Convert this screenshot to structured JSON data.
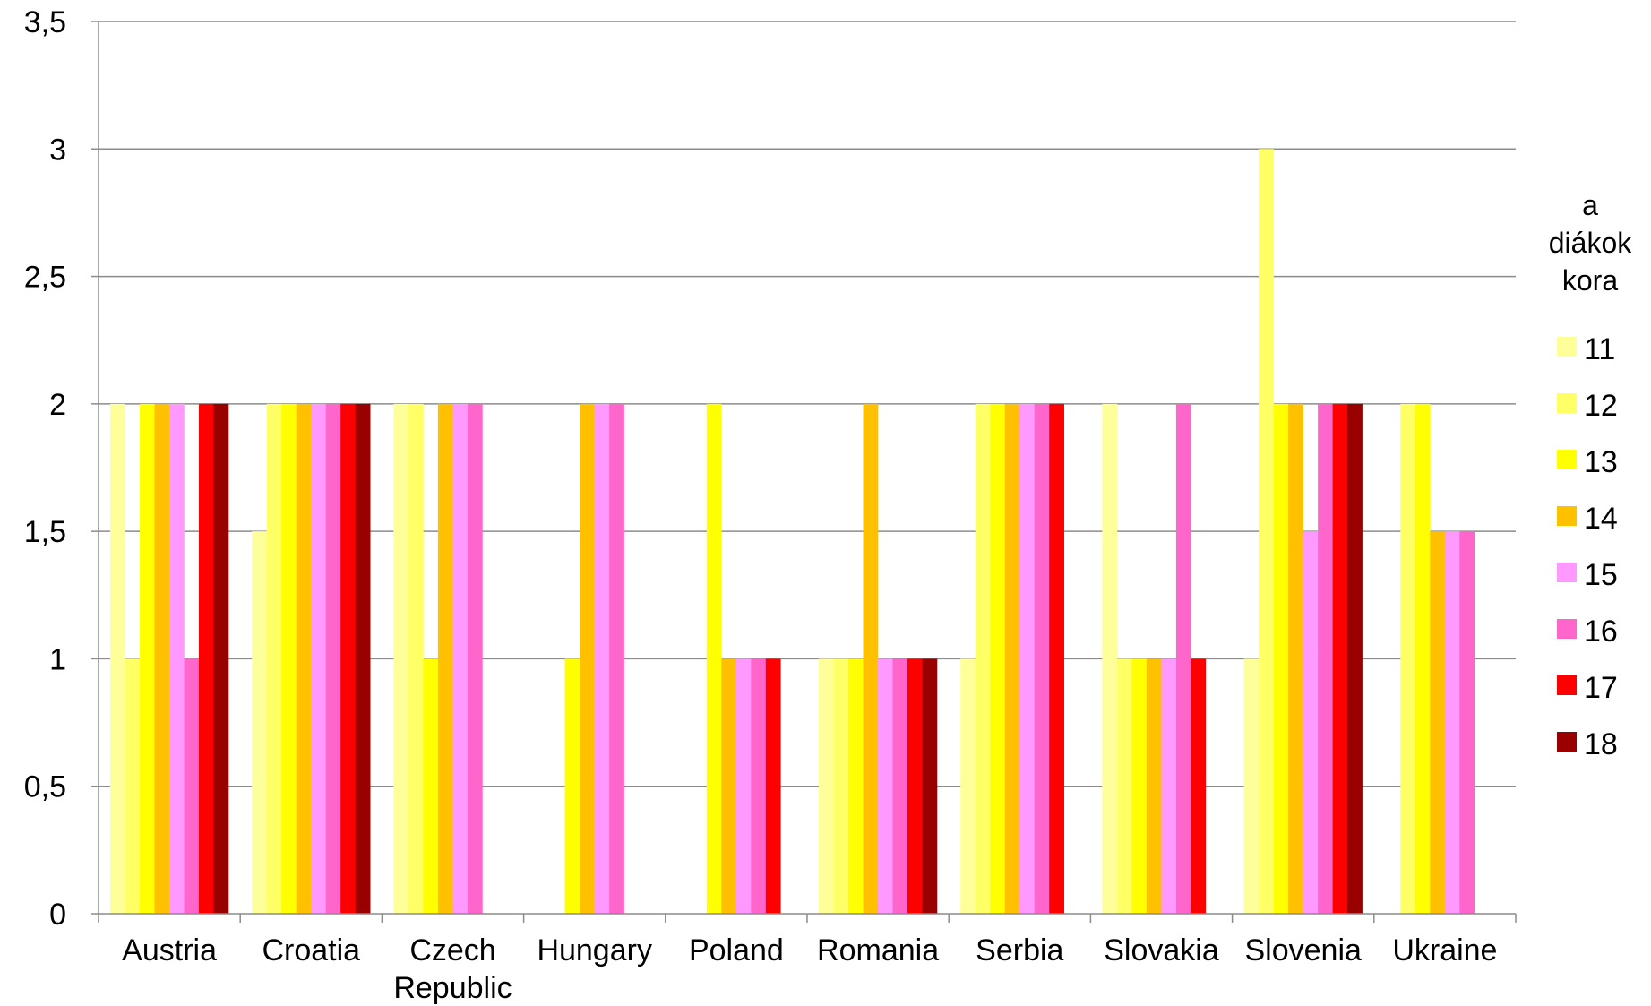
{
  "chart_data": {
    "type": "bar",
    "categories": [
      "Austria",
      "Croatia",
      "Czech Republic",
      "Hungary",
      "Poland",
      "Romania",
      "Serbia",
      "Slovakia",
      "Slovenia",
      "Ukraine"
    ],
    "ylim": [
      0,
      3.5
    ],
    "yticks": [
      "0",
      "0,5",
      "1",
      "1,5",
      "2",
      "2,5",
      "3",
      "3,5"
    ],
    "grid": true,
    "legend": {
      "title": "a diákok kora",
      "placement": "right"
    },
    "series": [
      {
        "name": "11",
        "color": "#FFFF99",
        "values": [
          2,
          1.5,
          2,
          null,
          null,
          1,
          1,
          2,
          1,
          null
        ]
      },
      {
        "name": "12",
        "color": "#FFFF66",
        "values": [
          1,
          2,
          2,
          null,
          null,
          1,
          2,
          1,
          3,
          2
        ]
      },
      {
        "name": "13",
        "color": "#FFFF00",
        "values": [
          2,
          2,
          1,
          1,
          2,
          1,
          2,
          1,
          2,
          2
        ]
      },
      {
        "name": "14",
        "color": "#FFC000",
        "values": [
          2,
          2,
          2,
          2,
          1,
          2,
          2,
          1,
          2,
          1.5
        ]
      },
      {
        "name": "15",
        "color": "#FF99FF",
        "values": [
          2,
          2,
          2,
          2,
          1,
          1,
          2,
          1,
          1.5,
          1.5
        ]
      },
      {
        "name": "16",
        "color": "#FF66CC",
        "values": [
          1,
          2,
          2,
          2,
          1,
          1,
          2,
          2,
          2,
          1.5
        ]
      },
      {
        "name": "17",
        "color": "#FF0000",
        "values": [
          2,
          2,
          null,
          null,
          1,
          1,
          2,
          1,
          2,
          null
        ]
      },
      {
        "name": "18",
        "color": "#990000",
        "values": [
          2,
          2,
          null,
          null,
          null,
          1,
          null,
          null,
          2,
          null
        ]
      }
    ]
  }
}
